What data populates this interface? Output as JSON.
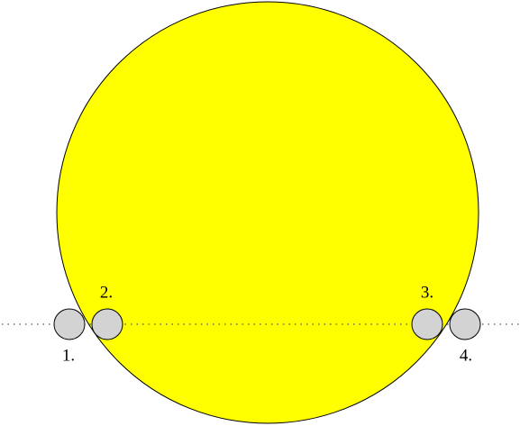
{
  "markers": [
    {
      "label": "1."
    },
    {
      "label": "2."
    },
    {
      "label": "3."
    },
    {
      "label": "4."
    }
  ]
}
